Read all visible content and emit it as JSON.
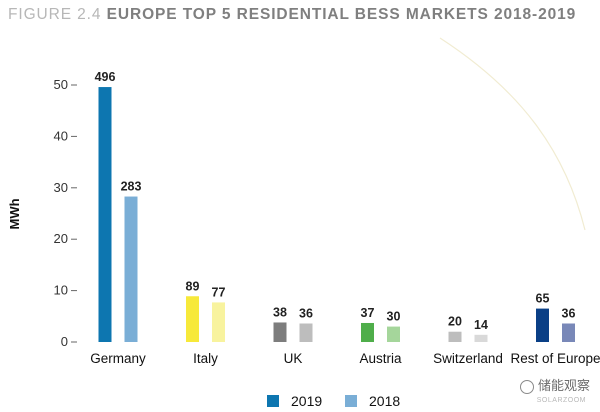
{
  "figure": {
    "number": "FIGURE 2.4",
    "title": "EUROPE TOP 5 RESIDENTIAL BESS MARKETS 2018-2019"
  },
  "watermark": {
    "text": "储能观察",
    "sub": "SOLARZOOM"
  },
  "chart_data": {
    "type": "bar",
    "title": "EUROPE TOP 5 RESIDENTIAL BESS MARKETS 2018-2019",
    "ylabel": "MWh",
    "xlabel": "",
    "categories": [
      "Germany",
      "Italy",
      "UK",
      "Austria",
      "Switzerland",
      "Rest of Europe"
    ],
    "series": [
      {
        "name": "2019",
        "color": "#0d76b0",
        "values": [
          49.6,
          8.9,
          3.8,
          3.7,
          2.0,
          6.5
        ],
        "labels": [
          "496",
          "89",
          "38",
          "37",
          "20",
          "65"
        ]
      },
      {
        "name": "2018",
        "color": "#7aaed6",
        "values": [
          28.3,
          7.7,
          3.6,
          3.0,
          1.4,
          3.6
        ],
        "labels": [
          "283",
          "77",
          "36",
          "30",
          "14",
          "36"
        ]
      }
    ],
    "bar_colors": [
      [
        "#0d76b0",
        "#7aaed6"
      ],
      [
        "#f7e93a",
        "#f8f39e"
      ],
      [
        "#7d7d7d",
        "#bdbdbd"
      ],
      [
        "#4fae4a",
        "#a5d69b"
      ],
      [
        "#bdbdbd",
        "#d9d9d9"
      ],
      [
        "#0a3f86",
        "#7988b8"
      ]
    ],
    "ylim": [
      0,
      50
    ],
    "yticks": [
      0,
      10,
      20,
      30,
      40,
      50
    ],
    "ytick_labels": [
      "0",
      "10",
      "20",
      "30",
      "40",
      "50"
    ],
    "grid": false,
    "legend": "bottom-center"
  }
}
